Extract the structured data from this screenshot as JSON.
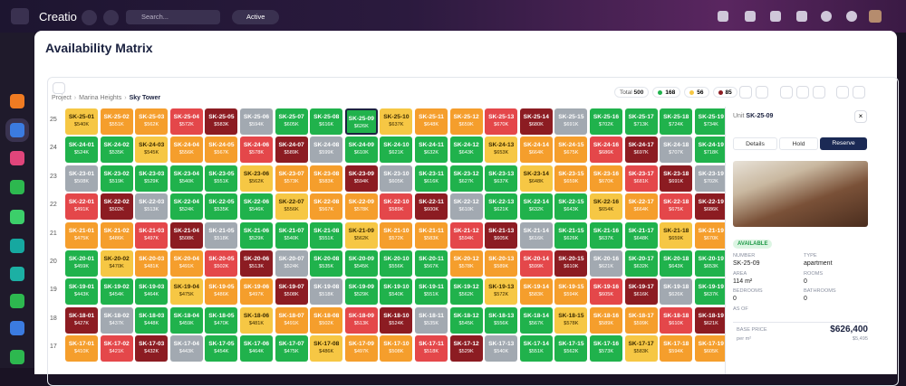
{
  "app": {
    "brand": "Creatio",
    "search": "Search...",
    "status": "Active"
  },
  "header": {
    "title": "Availability Matrix"
  },
  "breadcrumb": [
    "Project",
    "Marina Heights",
    "Sky Tower"
  ],
  "toolbar": {
    "total_label": "Total",
    "total": "500",
    "legend": [
      {
        "count": "168",
        "color": "#20b24c"
      },
      {
        "count": "56",
        "color": "#f6c744"
      },
      {
        "count": "85",
        "color": "#8c1c22"
      }
    ]
  },
  "matrix": {
    "rows": [
      {
        "floor": "25",
        "cells": [
          [
            "SK-25-01",
            "$540K",
            "#f6c744"
          ],
          [
            "SK-25-02",
            "$551K",
            "#f59e2c"
          ],
          [
            "SK-25-03",
            "$562K",
            "#f59e2c"
          ],
          [
            "SK-25-04",
            "$572K",
            "#e4474a"
          ],
          [
            "SK-25-05",
            "$583K",
            "#8c1c22"
          ],
          [
            "SK-25-06",
            "$594K",
            "#a2a9b1"
          ],
          [
            "SK-25-07",
            "$605K",
            "#20b24c"
          ],
          [
            "SK-25-08",
            "$616K",
            "#20b24c"
          ],
          [
            "SK-25-09",
            "$626K",
            "#20b24c"
          ],
          [
            "SK-25-10",
            "$637K",
            "#f6c744"
          ],
          [
            "SK-25-11",
            "$648K",
            "#f59e2c"
          ],
          [
            "SK-25-12",
            "$659K",
            "#f59e2c"
          ],
          [
            "SK-25-13",
            "$670K",
            "#e4474a"
          ],
          [
            "SK-25-14",
            "$680K",
            "#8c1c22"
          ],
          [
            "SK-25-15",
            "$691K",
            "#a2a9b1"
          ],
          [
            "SK-25-16",
            "$702K",
            "#20b24c"
          ],
          [
            "SK-25-17",
            "$713K",
            "#20b24c"
          ],
          [
            "SK-25-18",
            "$724K",
            "#20b24c"
          ],
          [
            "SK-25-19",
            "$734K",
            "#20b24c"
          ]
        ]
      },
      {
        "floor": "24",
        "cells": [
          [
            "SK-24-01",
            "$524K",
            "#20b24c"
          ],
          [
            "SK-24-02",
            "$535K",
            "#20b24c"
          ],
          [
            "SK-24-03",
            "$545K",
            "#f6c744"
          ],
          [
            "SK-24-04",
            "$556K",
            "#f59e2c"
          ],
          [
            "SK-24-05",
            "$567K",
            "#f59e2c"
          ],
          [
            "SK-24-06",
            "$578K",
            "#e4474a"
          ],
          [
            "SK-24-07",
            "$589K",
            "#8c1c22"
          ],
          [
            "SK-24-08",
            "$599K",
            "#a2a9b1"
          ],
          [
            "SK-24-09",
            "$610K",
            "#20b24c"
          ],
          [
            "SK-24-10",
            "$621K",
            "#20b24c"
          ],
          [
            "SK-24-11",
            "$632K",
            "#20b24c"
          ],
          [
            "SK-24-12",
            "$643K",
            "#20b24c"
          ],
          [
            "SK-24-13",
            "$653K",
            "#f6c744"
          ],
          [
            "SK-24-14",
            "$664K",
            "#f59e2c"
          ],
          [
            "SK-24-15",
            "$675K",
            "#f59e2c"
          ],
          [
            "SK-24-16",
            "$686K",
            "#e4474a"
          ],
          [
            "SK-24-17",
            "$697K",
            "#8c1c22"
          ],
          [
            "SK-24-18",
            "$707K",
            "#a2a9b1"
          ],
          [
            "SK-24-19",
            "$718K",
            "#20b24c"
          ]
        ]
      },
      {
        "floor": "23",
        "cells": [
          [
            "SK-23-01",
            "$508K",
            "#a2a9b1"
          ],
          [
            "SK-23-02",
            "$519K",
            "#20b24c"
          ],
          [
            "SK-23-03",
            "$529K",
            "#20b24c"
          ],
          [
            "SK-23-04",
            "$540K",
            "#20b24c"
          ],
          [
            "SK-23-05",
            "$551K",
            "#20b24c"
          ],
          [
            "SK-23-06",
            "$562K",
            "#f6c744"
          ],
          [
            "SK-23-07",
            "$573K",
            "#f59e2c"
          ],
          [
            "SK-23-08",
            "$583K",
            "#f59e2c"
          ],
          [
            "SK-23-09",
            "$594K",
            "#8c1c22"
          ],
          [
            "SK-23-10",
            "$605K",
            "#a2a9b1"
          ],
          [
            "SK-23-11",
            "$616K",
            "#20b24c"
          ],
          [
            "SK-23-12",
            "$627K",
            "#20b24c"
          ],
          [
            "SK-23-13",
            "$637K",
            "#20b24c"
          ],
          [
            "SK-23-14",
            "$648K",
            "#f6c744"
          ],
          [
            "SK-23-15",
            "$659K",
            "#f59e2c"
          ],
          [
            "SK-23-16",
            "$670K",
            "#f59e2c"
          ],
          [
            "SK-23-17",
            "$681K",
            "#e4474a"
          ],
          [
            "SK-23-18",
            "$691K",
            "#8c1c22"
          ],
          [
            "SK-23-19",
            "$702K",
            "#a2a9b1"
          ]
        ]
      },
      {
        "floor": "22",
        "cells": [
          [
            "SK-22-01",
            "$491K",
            "#e4474a"
          ],
          [
            "SK-22-02",
            "$502K",
            "#8c1c22"
          ],
          [
            "SK-22-03",
            "$513K",
            "#a2a9b1"
          ],
          [
            "SK-22-04",
            "$524K",
            "#20b24c"
          ],
          [
            "SK-22-05",
            "$535K",
            "#20b24c"
          ],
          [
            "SK-22-06",
            "$546K",
            "#20b24c"
          ],
          [
            "SK-22-07",
            "$556K",
            "#f6c744"
          ],
          [
            "SK-22-08",
            "$567K",
            "#f59e2c"
          ],
          [
            "SK-22-09",
            "$578K",
            "#f59e2c"
          ],
          [
            "SK-22-10",
            "$589K",
            "#e4474a"
          ],
          [
            "SK-22-11",
            "$600K",
            "#8c1c22"
          ],
          [
            "SK-22-12",
            "$610K",
            "#a2a9b1"
          ],
          [
            "SK-22-13",
            "$621K",
            "#20b24c"
          ],
          [
            "SK-22-14",
            "$632K",
            "#20b24c"
          ],
          [
            "SK-22-15",
            "$643K",
            "#20b24c"
          ],
          [
            "SK-22-16",
            "$654K",
            "#f6c744"
          ],
          [
            "SK-22-17",
            "$664K",
            "#f59e2c"
          ],
          [
            "SK-22-18",
            "$675K",
            "#e4474a"
          ],
          [
            "SK-22-19",
            "$686K",
            "#8c1c22"
          ]
        ]
      },
      {
        "floor": "21",
        "cells": [
          [
            "SK-21-01",
            "$475K",
            "#f59e2c"
          ],
          [
            "SK-21-02",
            "$486K",
            "#f59e2c"
          ],
          [
            "SK-21-03",
            "$497K",
            "#e4474a"
          ],
          [
            "SK-21-04",
            "$508K",
            "#8c1c22"
          ],
          [
            "SK-21-05",
            "$518K",
            "#a2a9b1"
          ],
          [
            "SK-21-06",
            "$529K",
            "#20b24c"
          ],
          [
            "SK-21-07",
            "$540K",
            "#20b24c"
          ],
          [
            "SK-21-08",
            "$551K",
            "#20b24c"
          ],
          [
            "SK-21-09",
            "$562K",
            "#f6c744"
          ],
          [
            "SK-21-10",
            "$572K",
            "#f59e2c"
          ],
          [
            "SK-21-11",
            "$583K",
            "#f59e2c"
          ],
          [
            "SK-21-12",
            "$594K",
            "#e4474a"
          ],
          [
            "SK-21-13",
            "$605K",
            "#8c1c22"
          ],
          [
            "SK-21-14",
            "$616K",
            "#a2a9b1"
          ],
          [
            "SK-21-15",
            "$626K",
            "#20b24c"
          ],
          [
            "SK-21-16",
            "$637K",
            "#20b24c"
          ],
          [
            "SK-21-17",
            "$648K",
            "#20b24c"
          ],
          [
            "SK-21-18",
            "$659K",
            "#f6c744"
          ],
          [
            "SK-21-19",
            "$670K",
            "#f59e2c"
          ]
        ]
      },
      {
        "floor": "20",
        "cells": [
          [
            "SK-20-01",
            "$459K",
            "#20b24c"
          ],
          [
            "SK-20-02",
            "$470K",
            "#f6c744"
          ],
          [
            "SK-20-03",
            "$481K",
            "#f59e2c"
          ],
          [
            "SK-20-04",
            "$491K",
            "#f59e2c"
          ],
          [
            "SK-20-05",
            "$502K",
            "#e4474a"
          ],
          [
            "SK-20-06",
            "$513K",
            "#8c1c22"
          ],
          [
            "SK-20-07",
            "$524K",
            "#a2a9b1"
          ],
          [
            "SK-20-08",
            "$535K",
            "#20b24c"
          ],
          [
            "SK-20-09",
            "$545K",
            "#20b24c"
          ],
          [
            "SK-20-10",
            "$556K",
            "#20b24c"
          ],
          [
            "SK-20-11",
            "$567K",
            "#20b24c"
          ],
          [
            "SK-20-12",
            "$578K",
            "#f59e2c"
          ],
          [
            "SK-20-13",
            "$589K",
            "#f59e2c"
          ],
          [
            "SK-20-14",
            "$599K",
            "#e4474a"
          ],
          [
            "SK-20-15",
            "$610K",
            "#8c1c22"
          ],
          [
            "SK-20-16",
            "$621K",
            "#a2a9b1"
          ],
          [
            "SK-20-17",
            "$632K",
            "#20b24c"
          ],
          [
            "SK-20-18",
            "$643K",
            "#20b24c"
          ],
          [
            "SK-20-19",
            "$653K",
            "#20b24c"
          ]
        ]
      },
      {
        "floor": "19",
        "cells": [
          [
            "SK-19-01",
            "$443K",
            "#20b24c"
          ],
          [
            "SK-19-02",
            "$454K",
            "#20b24c"
          ],
          [
            "SK-19-03",
            "$464K",
            "#20b24c"
          ],
          [
            "SK-19-04",
            "$475K",
            "#f6c744"
          ],
          [
            "SK-19-05",
            "$486K",
            "#f59e2c"
          ],
          [
            "SK-19-06",
            "$497K",
            "#f59e2c"
          ],
          [
            "SK-19-07",
            "$508K",
            "#8c1c22"
          ],
          [
            "SK-19-08",
            "$518K",
            "#a2a9b1"
          ],
          [
            "SK-19-09",
            "$529K",
            "#20b24c"
          ],
          [
            "SK-19-10",
            "$540K",
            "#20b24c"
          ],
          [
            "SK-19-11",
            "$551K",
            "#20b24c"
          ],
          [
            "SK-19-12",
            "$562K",
            "#20b24c"
          ],
          [
            "SK-19-13",
            "$572K",
            "#f6c744"
          ],
          [
            "SK-19-14",
            "$583K",
            "#f59e2c"
          ],
          [
            "SK-19-15",
            "$594K",
            "#f59e2c"
          ],
          [
            "SK-19-16",
            "$605K",
            "#e4474a"
          ],
          [
            "SK-19-17",
            "$616K",
            "#8c1c22"
          ],
          [
            "SK-19-18",
            "$626K",
            "#a2a9b1"
          ],
          [
            "SK-19-19",
            "$637K",
            "#20b24c"
          ]
        ]
      },
      {
        "floor": "18",
        "cells": [
          [
            "SK-18-01",
            "$427K",
            "#8c1c22"
          ],
          [
            "SK-18-02",
            "$437K",
            "#a2a9b1"
          ],
          [
            "SK-18-03",
            "$448K",
            "#20b24c"
          ],
          [
            "SK-18-04",
            "$459K",
            "#20b24c"
          ],
          [
            "SK-18-05",
            "$470K",
            "#20b24c"
          ],
          [
            "SK-18-06",
            "$481K",
            "#f6c744"
          ],
          [
            "SK-18-07",
            "$491K",
            "#f59e2c"
          ],
          [
            "SK-18-08",
            "$502K",
            "#f59e2c"
          ],
          [
            "SK-18-09",
            "$513K",
            "#e4474a"
          ],
          [
            "SK-18-10",
            "$524K",
            "#8c1c22"
          ],
          [
            "SK-18-11",
            "$535K",
            "#a2a9b1"
          ],
          [
            "SK-18-12",
            "$545K",
            "#20b24c"
          ],
          [
            "SK-18-13",
            "$556K",
            "#20b24c"
          ],
          [
            "SK-18-14",
            "$567K",
            "#20b24c"
          ],
          [
            "SK-18-15",
            "$578K",
            "#f6c744"
          ],
          [
            "SK-18-16",
            "$589K",
            "#f59e2c"
          ],
          [
            "SK-18-17",
            "$599K",
            "#f59e2c"
          ],
          [
            "SK-18-18",
            "$610K",
            "#e4474a"
          ],
          [
            "SK-18-19",
            "$621K",
            "#8c1c22"
          ]
        ]
      },
      {
        "floor": "17",
        "cells": [
          [
            "SK-17-01",
            "$410K",
            "#f59e2c"
          ],
          [
            "SK-17-02",
            "$421K",
            "#e4474a"
          ],
          [
            "SK-17-03",
            "$432K",
            "#8c1c22"
          ],
          [
            "SK-17-04",
            "$443K",
            "#a2a9b1"
          ],
          [
            "SK-17-05",
            "$454K",
            "#20b24c"
          ],
          [
            "SK-17-06",
            "$464K",
            "#20b24c"
          ],
          [
            "SK-17-07",
            "$475K",
            "#20b24c"
          ],
          [
            "SK-17-08",
            "$486K",
            "#f6c744"
          ],
          [
            "SK-17-09",
            "$497K",
            "#f59e2c"
          ],
          [
            "SK-17-10",
            "$508K",
            "#f59e2c"
          ],
          [
            "SK-17-11",
            "$518K",
            "#e4474a"
          ],
          [
            "SK-17-12",
            "$529K",
            "#8c1c22"
          ],
          [
            "SK-17-13",
            "$540K",
            "#a2a9b1"
          ],
          [
            "SK-17-14",
            "$551K",
            "#20b24c"
          ],
          [
            "SK-17-15",
            "$562K",
            "#20b24c"
          ],
          [
            "SK-17-16",
            "$573K",
            "#20b24c"
          ],
          [
            "SK-17-17",
            "$583K",
            "#f6c744"
          ],
          [
            "SK-17-18",
            "$594K",
            "#f59e2c"
          ],
          [
            "SK-17-19",
            "$605K",
            "#f59e2c"
          ]
        ]
      }
    ]
  },
  "panel": {
    "unit_label": "Unit",
    "unit": "SK-25-09",
    "tabs": [
      "Details",
      "Hold",
      "Reserve"
    ],
    "status": "AVAILABLE",
    "fields": [
      [
        "NUMBER",
        "SK-25-09"
      ],
      [
        "TYPE",
        "apartment"
      ],
      [
        "AREA",
        "114 m²"
      ],
      [
        "ROOMS",
        "0"
      ],
      [
        "BEDROOMS",
        "0"
      ],
      [
        "BATHROOMS",
        "0"
      ],
      [
        "AS OF",
        ""
      ]
    ],
    "base_price_label": "BASE PRICE",
    "base_price": "$626,400",
    "per_label": "per m²",
    "per_value": "$5,495"
  }
}
